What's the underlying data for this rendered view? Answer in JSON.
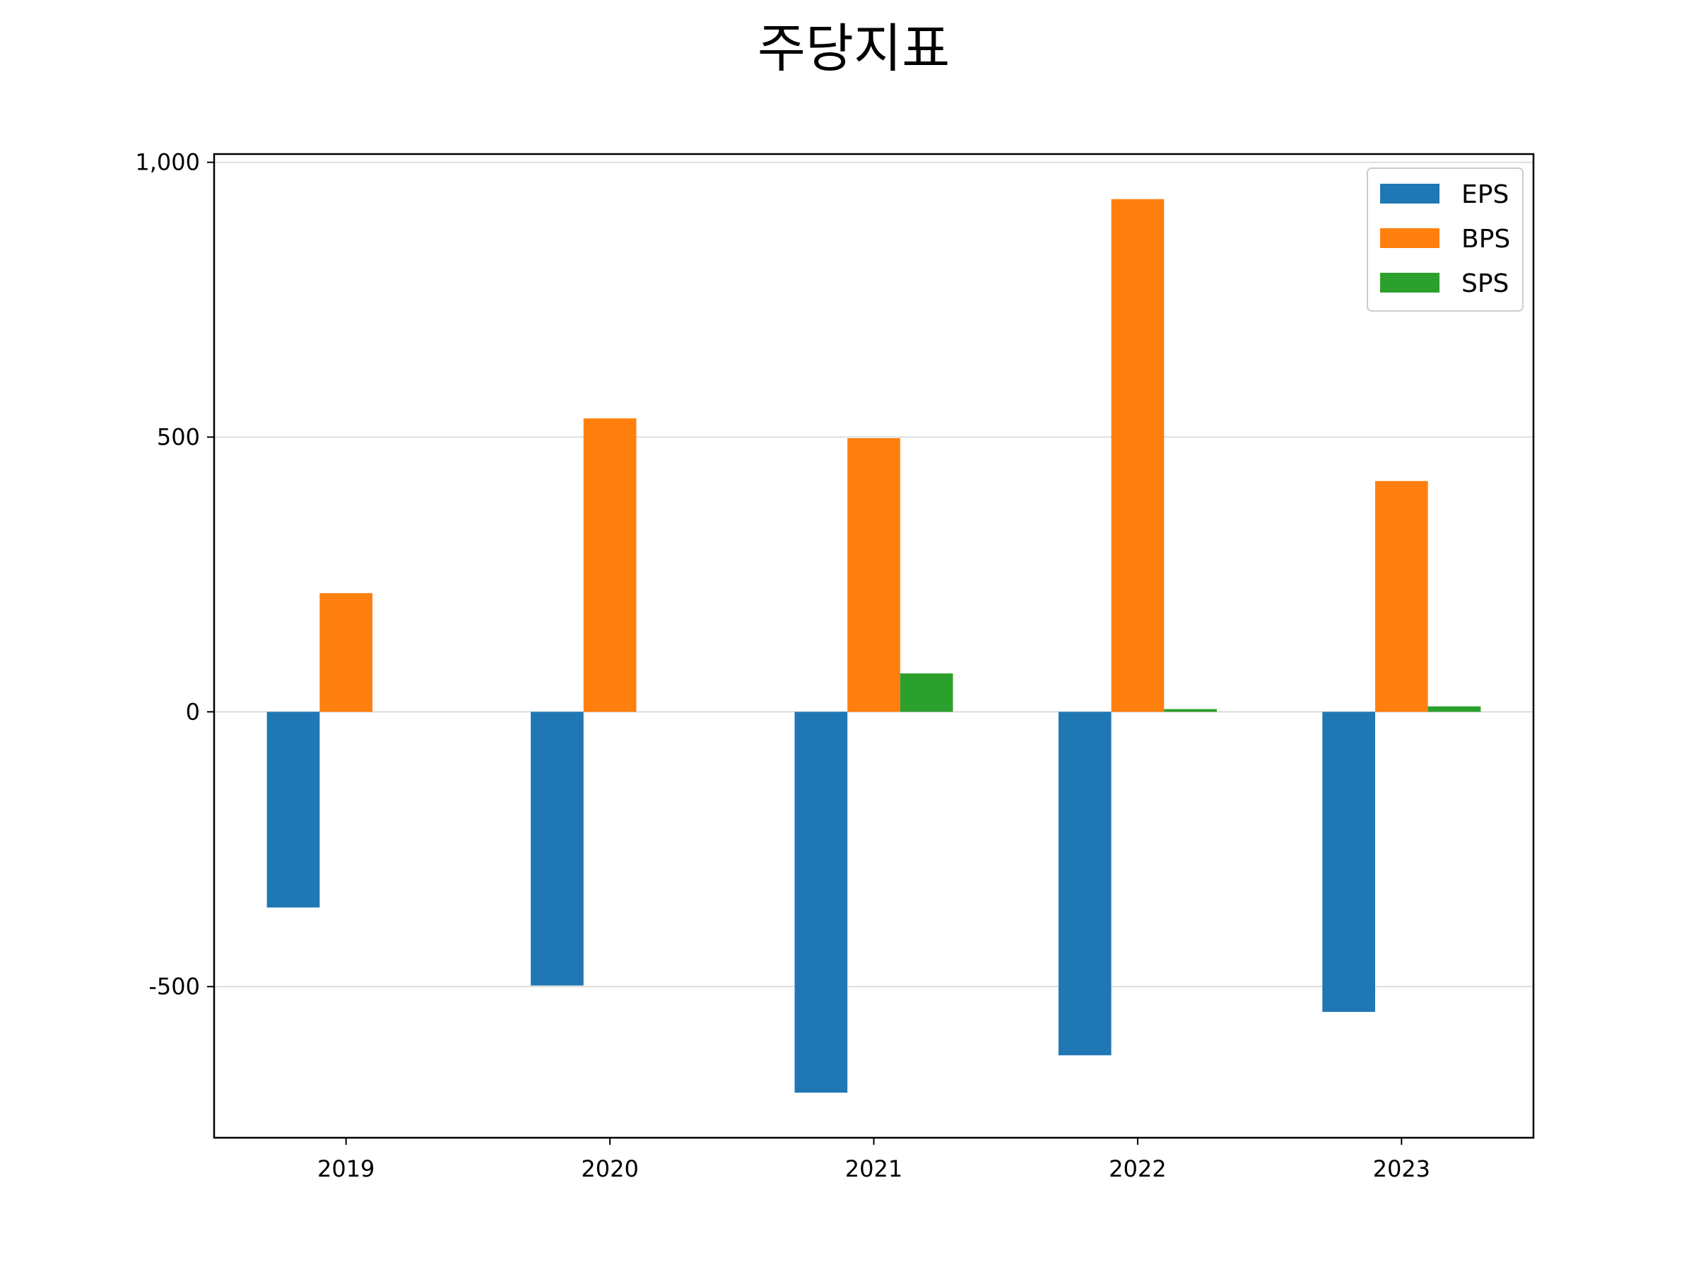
{
  "chart_data": {
    "type": "bar",
    "title": "주당지표",
    "xlabel": "",
    "ylabel": "",
    "categories": [
      "2019",
      "2020",
      "2021",
      "2022",
      "2023"
    ],
    "series": [
      {
        "name": "EPS",
        "color": "#1f77b4",
        "values": [
          -356,
          -498,
          -693,
          -625,
          -546
        ]
      },
      {
        "name": "BPS",
        "color": "#ff7f0e",
        "values": [
          216,
          534,
          498,
          933,
          420
        ]
      },
      {
        "name": "SPS",
        "color": "#2ca02c",
        "values": [
          0,
          0,
          70,
          5,
          10
        ]
      }
    ],
    "ylim": [
      -775,
      1015
    ],
    "yticks": [
      -500,
      0,
      500,
      1000
    ],
    "ytick_labels": [
      "-500",
      "0",
      "500",
      "1,000"
    ],
    "grid": "y",
    "legend": "top-right"
  }
}
